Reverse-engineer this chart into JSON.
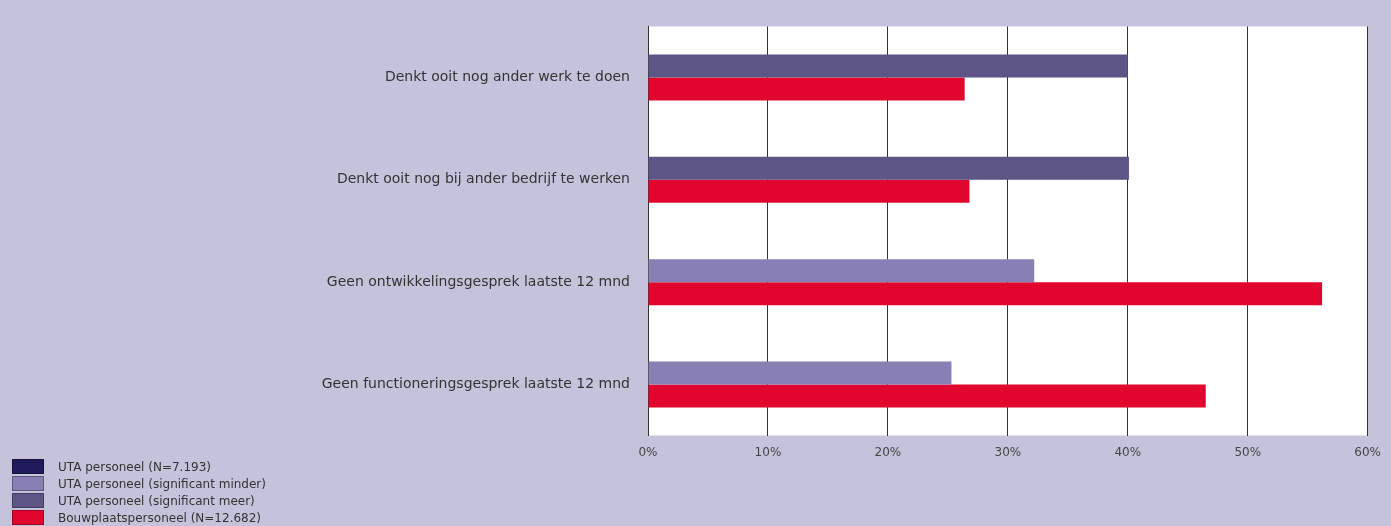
{
  "chart_data": {
    "type": "bar",
    "orientation": "horizontal",
    "categories": [
      "Denkt ooit nog ander werk te doen",
      "Denkt ooit nog bij ander bedrijf te werken",
      "Geen ontwikkelingsgesprek laatste 12 mnd",
      "Geen functioneringsgesprek laatste 12 mnd"
    ],
    "series": [
      {
        "name": "UTA personeel (N=7.193)",
        "color": "#1f1a5a",
        "values": [
          null,
          null,
          null,
          null
        ]
      },
      {
        "name": "UTA personeel (significant minder)",
        "color": "#8880b4",
        "values": [
          null,
          null,
          32.2,
          25.3
        ]
      },
      {
        "name": "UTA personeel (significant meer)",
        "color": "#5e5587",
        "values": [
          40.0,
          40.1,
          null,
          null
        ]
      },
      {
        "name": "Bouwplaatspersoneel (N=12.682)",
        "color": "#e0062e",
        "values": [
          26.4,
          26.8,
          56.2,
          46.5
        ]
      }
    ],
    "xlim": [
      0,
      60
    ],
    "xticks": [
      {
        "value": 0,
        "label": "0%"
      },
      {
        "value": 10,
        "label": "10%"
      },
      {
        "value": 20,
        "label": "20%"
      },
      {
        "value": 30,
        "label": "30%"
      },
      {
        "value": 40,
        "label": "40%"
      },
      {
        "value": 50,
        "label": "50%"
      },
      {
        "value": 60,
        "label": "60%"
      }
    ],
    "grid": "x",
    "legend": "bottom left"
  }
}
